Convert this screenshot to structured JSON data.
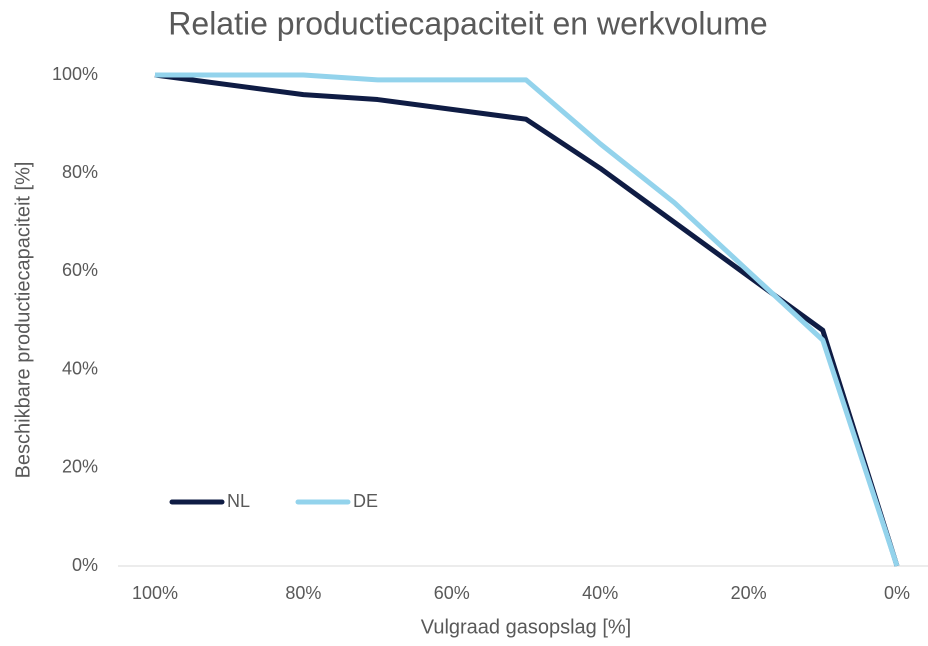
{
  "chart_data": {
    "type": "line",
    "title": "Relatie productiecapaciteit en werkvolume",
    "x_label": "Vulgraad gasopslag [%]",
    "y_label": "Beschikbare productiecapaciteit [%]",
    "x": [
      100,
      80,
      70,
      50,
      40,
      30,
      20,
      10,
      0
    ],
    "series": [
      {
        "name": "NL",
        "color": "#0f1c44",
        "values": [
          100,
          96,
          95,
          91,
          81,
          70,
          59,
          48,
          0
        ]
      },
      {
        "name": "DE",
        "color": "#93d3ec",
        "values": [
          100,
          100,
          99,
          99,
          86,
          74,
          60,
          46,
          0
        ]
      }
    ],
    "xlim": [
      100,
      0
    ],
    "xticks": [
      {
        "value": 100,
        "label": "100%"
      },
      {
        "value": 80,
        "label": "80%"
      },
      {
        "value": 60,
        "label": "60%"
      },
      {
        "value": 40,
        "label": "40%"
      },
      {
        "value": 20,
        "label": "20%"
      },
      {
        "value": 0,
        "label": "0%"
      }
    ],
    "ylim": [
      0,
      100
    ],
    "yticks": [
      {
        "value": 0,
        "label": "0%"
      },
      {
        "value": 20,
        "label": "20%"
      },
      {
        "value": 40,
        "label": "40%"
      },
      {
        "value": 60,
        "label": "60%"
      },
      {
        "value": 80,
        "label": "80%"
      },
      {
        "value": 100,
        "label": "100%"
      }
    ],
    "grid": false,
    "legend": "lower left"
  }
}
